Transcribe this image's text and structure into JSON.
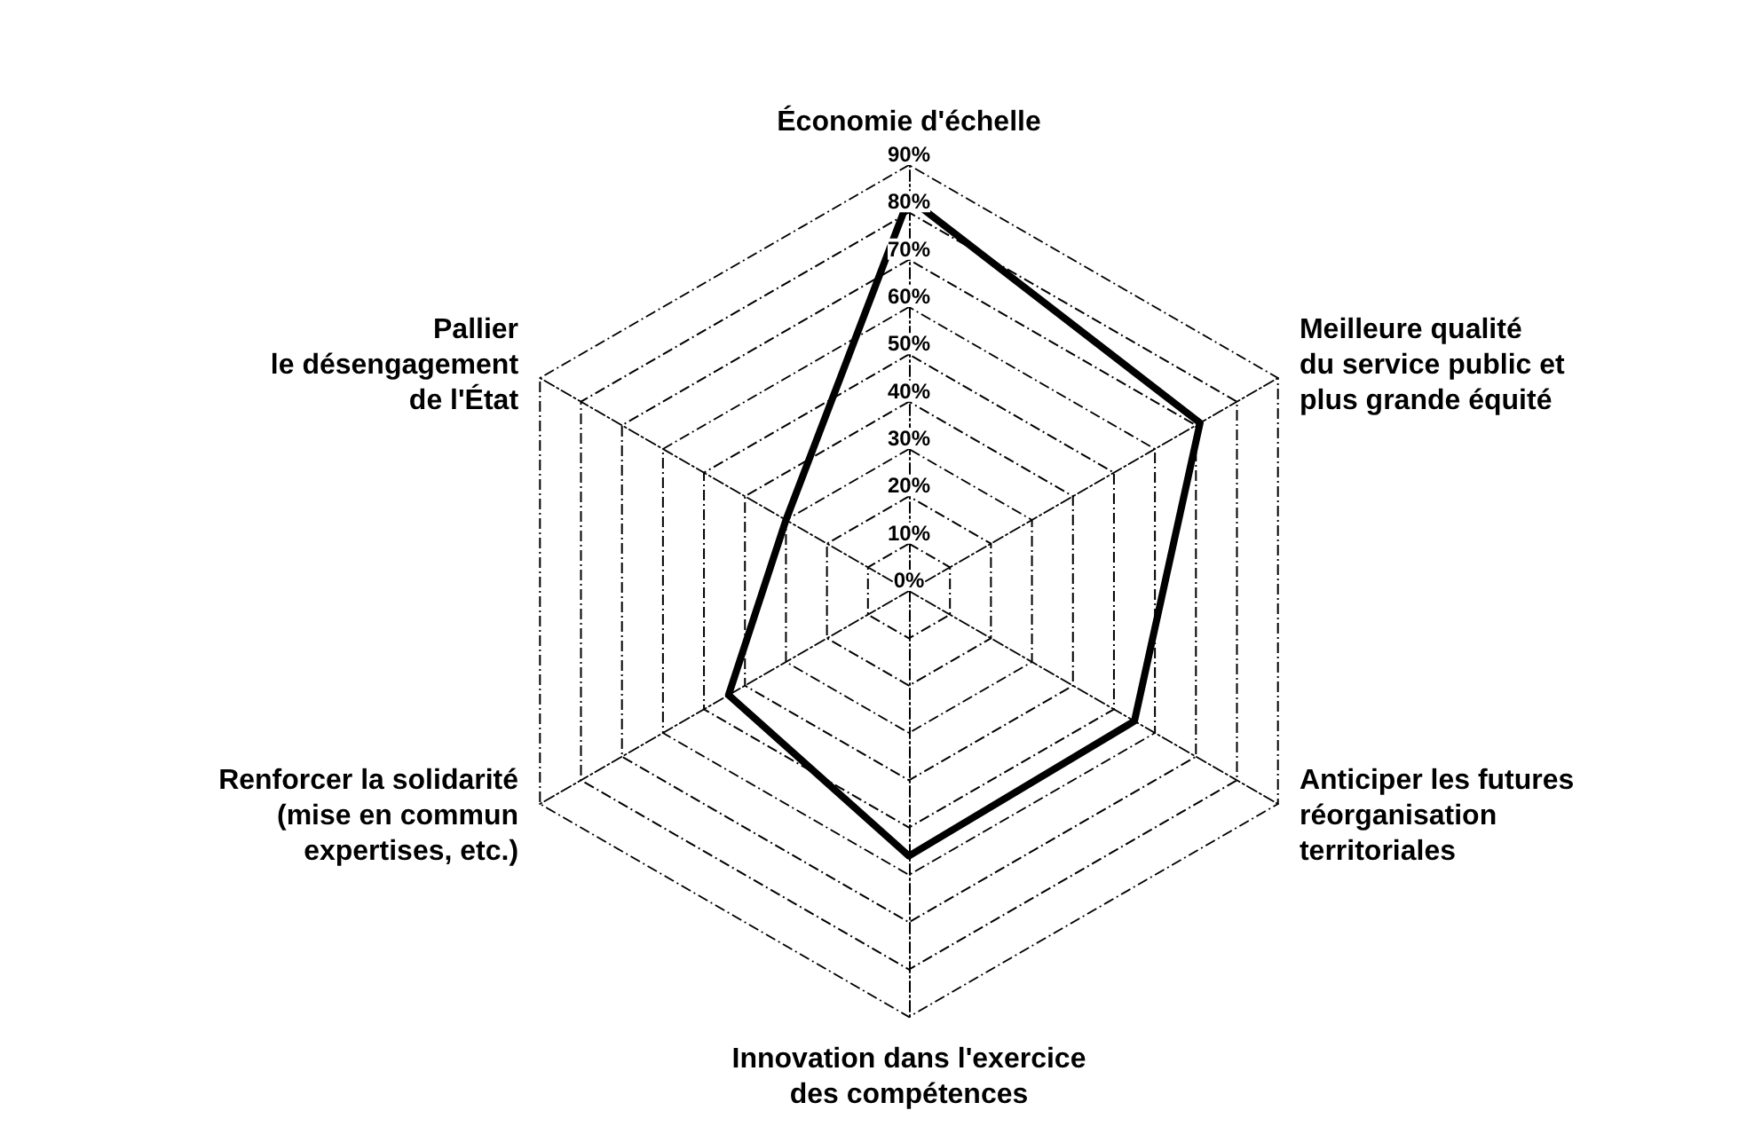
{
  "chart_data": {
    "type": "radar",
    "categories": [
      "Économie d'échelle",
      "Meilleure qualité\ndu service public et\nplus grande équité",
      "Anticiper les futures\nréorganisation\nterritoriales",
      "Innovation dans l'exercice\ndes compétences",
      "Renforcer la solidarité\n(mise en commun\nexpertises, etc.)",
      "Pallier\nle désengagement\nde l'État"
    ],
    "series": [
      {
        "color": "#000000",
        "values": [
          83,
          71,
          55,
          56,
          44,
          30
        ]
      }
    ],
    "ylim": [
      0,
      90
    ],
    "yticks": [
      {
        "value": 0,
        "label": "0%"
      },
      {
        "value": 10,
        "label": "10%"
      },
      {
        "value": 20,
        "label": "20%"
      },
      {
        "value": 30,
        "label": "30%"
      },
      {
        "value": 40,
        "label": "40%"
      },
      {
        "value": 50,
        "label": "50%"
      },
      {
        "value": 60,
        "label": "60%"
      },
      {
        "value": 70,
        "label": "70%"
      },
      {
        "value": 80,
        "label": "80%"
      },
      {
        "value": 90,
        "label": "90%"
      }
    ],
    "grid": true,
    "marker": "none",
    "line_style": "solid"
  }
}
